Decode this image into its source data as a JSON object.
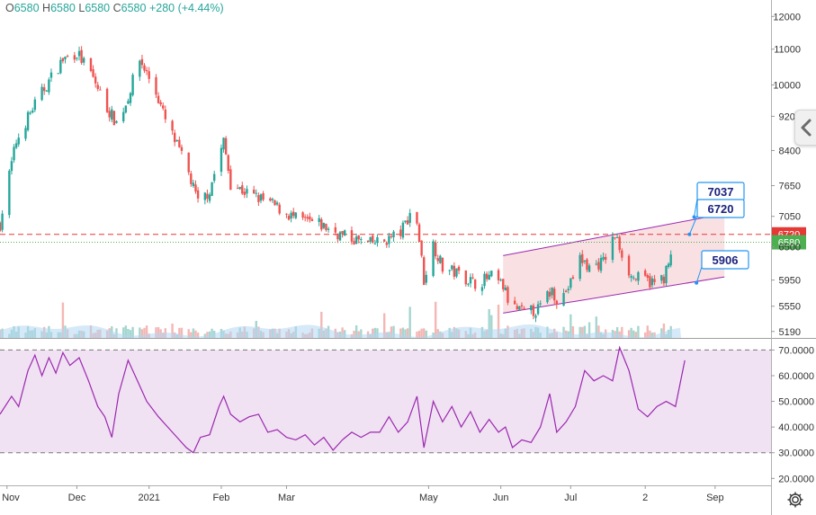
{
  "legend": {
    "o_label": "O",
    "o_value": "6580",
    "h_label": "H",
    "h_value": "6580",
    "l_label": "L",
    "l_value": "6580",
    "c_label": "C",
    "c_value": "6580",
    "change": "+280 (+4.44%)"
  },
  "colors": {
    "up": "#26a69a",
    "down": "#ef5350",
    "up_volume": "#a5d6cf",
    "down_volume": "#f4b7b5",
    "channel_fill": "#f7d6d8",
    "channel_line": "#9c27b0",
    "rsi_line": "#9c27b0",
    "rsi_band": "#f0e2f2",
    "resistance_line": "#e53935",
    "last_price_line": "#4caf50",
    "callout_border": "#2196f3",
    "callout_text": "#1a237e"
  },
  "icons": {
    "collapse": "chevron-left-icon",
    "settings": "gear-icon"
  },
  "chart_data": [
    {
      "type": "candlestick",
      "title": "",
      "price_axis_ticks": [
        "12000",
        "11000",
        "10000",
        "9200",
        "8400",
        "7650",
        "7050",
        "6500",
        "5950",
        "5550",
        "5190"
      ],
      "scale": "log",
      "ylim": [
        5150,
        12300
      ],
      "time_axis_ticks": [
        "Nov",
        "Dec",
        "2021",
        "Feb",
        "Mar",
        "May",
        "Jun",
        "Jul",
        "2",
        "Sep"
      ],
      "x_range": [
        "2020-10-29",
        "2021-09-25"
      ],
      "grid": false,
      "trend": [
        [
          "2020-10-29",
          6900
        ],
        [
          "2020-11-05",
          8600
        ],
        [
          "2020-11-12",
          9400
        ],
        [
          "2020-11-18",
          10000
        ],
        [
          "2020-11-25",
          10700
        ],
        [
          "2020-12-01",
          10900
        ],
        [
          "2020-12-07",
          10300
        ],
        [
          "2020-12-14",
          9400
        ],
        [
          "2020-12-18",
          9050
        ],
        [
          "2020-12-22",
          9500
        ],
        [
          "2020-12-28",
          10700
        ],
        [
          "2021-01-04",
          9800
        ],
        [
          "2021-01-08",
          9100
        ],
        [
          "2021-01-13",
          8500
        ],
        [
          "2021-01-18",
          7900
        ],
        [
          "2021-01-22",
          7300
        ],
        [
          "2021-01-27",
          7550
        ],
        [
          "2021-02-02",
          8600
        ],
        [
          "2021-02-05",
          7700
        ],
        [
          "2021-02-12",
          7500
        ],
        [
          "2021-02-22",
          7300
        ],
        [
          "2021-03-05",
          7000
        ],
        [
          "2021-03-15",
          6900
        ],
        [
          "2021-03-25",
          6700
        ],
        [
          "2021-04-05",
          6550
        ],
        [
          "2021-04-12",
          6600
        ],
        [
          "2021-04-19",
          6750
        ],
        [
          "2021-04-23",
          7100
        ],
        [
          "2021-04-26",
          6950
        ],
        [
          "2021-04-29",
          5950
        ],
        [
          "2021-05-03",
          6550
        ],
        [
          "2021-05-07",
          6150
        ],
        [
          "2021-05-14",
          6050
        ],
        [
          "2021-05-21",
          5900
        ],
        [
          "2021-05-28",
          6000
        ],
        [
          "2021-06-02",
          5850
        ],
        [
          "2021-06-05",
          5550
        ],
        [
          "2021-06-11",
          5450
        ],
        [
          "2021-06-17",
          5500
        ],
        [
          "2021-06-23",
          5800
        ],
        [
          "2021-06-26",
          5600
        ],
        [
          "2021-07-01",
          5900
        ],
        [
          "2021-07-05",
          6300
        ],
        [
          "2021-07-09",
          6150
        ],
        [
          "2021-07-15",
          6250
        ],
        [
          "2021-07-20",
          6700
        ],
        [
          "2021-07-23",
          6400
        ],
        [
          "2021-07-27",
          6000
        ],
        [
          "2021-08-02",
          5950
        ],
        [
          "2021-08-06",
          5900
        ],
        [
          "2021-08-10",
          6000
        ],
        [
          "2021-08-13",
          6300
        ]
      ],
      "price_lines": [
        {
          "label": "6720",
          "value": 6720,
          "style": "dashed",
          "color": "#e53935"
        },
        {
          "label": "6580",
          "value": 6580,
          "style": "dotted",
          "color": "#4caf50"
        }
      ],
      "channel": {
        "lower_start": [
          "2021-06-02",
          5450
        ],
        "lower_end": [
          "2021-09-05",
          6000
        ],
        "upper_start": [
          "2021-06-02",
          6350
        ],
        "upper_end": [
          "2021-09-05",
          7100
        ]
      },
      "callouts": [
        {
          "label": "7037",
          "anchor": [
            "2021-08-23",
            7037
          ]
        },
        {
          "label": "6720",
          "anchor": [
            "2021-08-21",
            6720
          ]
        },
        {
          "label": "5906",
          "anchor": [
            "2021-08-24",
            5906
          ]
        }
      ]
    },
    {
      "type": "line",
      "title": "",
      "axis_ticks": [
        "70.0000",
        "60.0000",
        "50.0000",
        "40.0000",
        "30.0000",
        "20.0000"
      ],
      "ylim": [
        18,
        74
      ],
      "bands": [
        30,
        70
      ],
      "x_range": [
        "2020-10-29",
        "2021-09-25"
      ],
      "series": [
        {
          "values": [
            [
              "2020-10-29",
              45
            ],
            [
              "2020-11-03",
              52
            ],
            [
              "2020-11-06",
              48
            ],
            [
              "2020-11-10",
              62
            ],
            [
              "2020-11-13",
              68
            ],
            [
              "2020-11-16",
              60
            ],
            [
              "2020-11-19",
              67
            ],
            [
              "2020-11-22",
              61
            ],
            [
              "2020-11-25",
              69
            ],
            [
              "2020-11-28",
              64
            ],
            [
              "2020-12-02",
              67
            ],
            [
              "2020-12-06",
              58
            ],
            [
              "2020-12-10",
              48
            ],
            [
              "2020-12-13",
              44
            ],
            [
              "2020-12-16",
              36
            ],
            [
              "2020-12-19",
              53
            ],
            [
              "2020-12-23",
              66
            ],
            [
              "2020-12-27",
              58
            ],
            [
              "2020-12-31",
              50
            ],
            [
              "2021-01-05",
              44
            ],
            [
              "2021-01-09",
              40
            ],
            [
              "2021-01-13",
              36
            ],
            [
              "2021-01-17",
              32
            ],
            [
              "2021-01-20",
              30
            ],
            [
              "2021-01-23",
              36
            ],
            [
              "2021-01-27",
              37
            ],
            [
              "2021-01-31",
              48
            ],
            [
              "2021-02-02",
              52
            ],
            [
              "2021-02-05",
              45
            ],
            [
              "2021-02-09",
              42
            ],
            [
              "2021-02-13",
              44
            ],
            [
              "2021-02-17",
              45
            ],
            [
              "2021-02-21",
              38
            ],
            [
              "2021-02-25",
              39
            ],
            [
              "2021-03-01",
              36
            ],
            [
              "2021-03-05",
              35
            ],
            [
              "2021-03-09",
              37
            ],
            [
              "2021-03-13",
              33
            ],
            [
              "2021-03-17",
              36
            ],
            [
              "2021-03-21",
              31
            ],
            [
              "2021-03-25",
              35
            ],
            [
              "2021-03-29",
              38
            ],
            [
              "2021-04-02",
              36
            ],
            [
              "2021-04-06",
              38
            ],
            [
              "2021-04-10",
              38
            ],
            [
              "2021-04-14",
              44
            ],
            [
              "2021-04-18",
              38
            ],
            [
              "2021-04-22",
              42
            ],
            [
              "2021-04-26",
              52
            ],
            [
              "2021-04-29",
              32
            ],
            [
              "2021-05-03",
              50
            ],
            [
              "2021-05-07",
              42
            ],
            [
              "2021-05-11",
              48
            ],
            [
              "2021-05-15",
              40
            ],
            [
              "2021-05-19",
              46
            ],
            [
              "2021-05-23",
              38
            ],
            [
              "2021-05-27",
              43
            ],
            [
              "2021-05-31",
              38
            ],
            [
              "2021-06-03",
              40
            ],
            [
              "2021-06-06",
              32
            ],
            [
              "2021-06-10",
              35
            ],
            [
              "2021-06-14",
              34
            ],
            [
              "2021-06-18",
              40
            ],
            [
              "2021-06-22",
              53
            ],
            [
              "2021-06-25",
              38
            ],
            [
              "2021-06-29",
              42
            ],
            [
              "2021-07-03",
              48
            ],
            [
              "2021-07-07",
              62
            ],
            [
              "2021-07-11",
              58
            ],
            [
              "2021-07-15",
              60
            ],
            [
              "2021-07-19",
              58
            ],
            [
              "2021-07-22",
              71
            ],
            [
              "2021-07-26",
              62
            ],
            [
              "2021-07-30",
              47
            ],
            [
              "2021-08-03",
              44
            ],
            [
              "2021-08-07",
              48
            ],
            [
              "2021-08-11",
              50
            ],
            [
              "2021-08-15",
              48
            ],
            [
              "2021-08-19",
              66
            ]
          ]
        }
      ]
    }
  ]
}
